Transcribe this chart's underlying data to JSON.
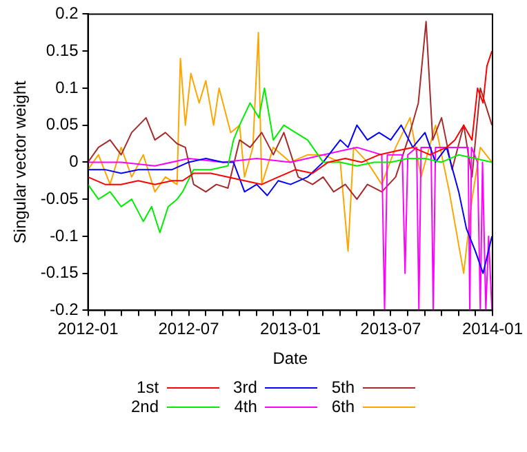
{
  "chart_data": {
    "type": "line",
    "xlabel": "Date",
    "ylabel": "Singular vector weight",
    "legend": "bottom",
    "xlim": [
      "2012-01-01",
      "2014-01-01"
    ],
    "ylim": [
      -0.2,
      0.2
    ],
    "yticks": [
      -0.2,
      -0.15,
      -0.1,
      -0.05,
      0,
      0.05,
      0.1,
      0.15,
      0.2
    ],
    "xticks": [
      "2012-01",
      {
        "value": "2012-02",
        "label": null
      },
      {
        "value": "2012-03",
        "label": null
      },
      {
        "value": "2012-04",
        "label": null
      },
      {
        "value": "2012-05",
        "label": null
      },
      {
        "value": "2012-06",
        "label": null
      },
      "2012-07",
      {
        "value": "2012-08",
        "label": null
      },
      {
        "value": "2012-09",
        "label": null
      },
      {
        "value": "2012-10",
        "label": null
      },
      {
        "value": "2012-11",
        "label": null
      },
      {
        "value": "2012-12",
        "label": null
      },
      "2013-01",
      {
        "value": "2013-02",
        "label": null
      },
      {
        "value": "2013-03",
        "label": null
      },
      {
        "value": "2013-04",
        "label": null
      },
      {
        "value": "2013-05",
        "label": null
      },
      {
        "value": "2013-06",
        "label": null
      },
      "2013-07",
      {
        "value": "2013-08",
        "label": null
      },
      {
        "value": "2013-09",
        "label": null
      },
      {
        "value": "2013-10",
        "label": null
      },
      {
        "value": "2013-11",
        "label": null
      },
      {
        "value": "2013-12",
        "label": null
      },
      "2014-01"
    ],
    "series": [
      {
        "name": "1st",
        "color": "#ff0000",
        "x": [
          "2012-01-01",
          "2012-02-01",
          "2012-03-01",
          "2012-04-01",
          "2012-05-01",
          "2012-06-01",
          "2012-06-20",
          "2012-07-10",
          "2012-08-10",
          "2012-09-10",
          "2012-10-10",
          "2012-11-10",
          "2012-12-10",
          "2013-01-10",
          "2013-02-10",
          "2013-03-10",
          "2013-04-10",
          "2013-05-10",
          "2013-06-10",
          "2013-07-10",
          "2013-08-10",
          "2013-09-10",
          "2013-10-10",
          "2013-10-25",
          "2013-11-10",
          "2013-11-25",
          "2013-12-05",
          "2013-12-15",
          "2013-12-22",
          "2013-12-31"
        ],
        "values": [
          -0.02,
          -0.03,
          -0.03,
          -0.025,
          -0.03,
          -0.025,
          -0.025,
          -0.015,
          -0.015,
          -0.02,
          -0.025,
          -0.03,
          -0.02,
          -0.01,
          -0.015,
          0,
          0.005,
          0,
          0.01,
          0.015,
          0.02,
          0.01,
          0.02,
          0.03,
          0.05,
          0.03,
          0.1,
          0.08,
          0.13,
          0.15
        ]
      },
      {
        "name": "2nd",
        "color": "#00ee00",
        "x": [
          "2012-01-01",
          "2012-01-20",
          "2012-02-10",
          "2012-03-01",
          "2012-03-20",
          "2012-04-10",
          "2012-04-25",
          "2012-05-10",
          "2012-05-25",
          "2012-06-10",
          "2012-06-20",
          "2012-07-10",
          "2012-08-10",
          "2012-09-10",
          "2012-09-20",
          "2012-10-01",
          "2012-10-20",
          "2012-11-05",
          "2012-11-15",
          "2012-12-01",
          "2012-12-20",
          "2013-01-10",
          "2013-02-01",
          "2013-03-01",
          "2013-04-01",
          "2013-05-01",
          "2013-06-01",
          "2013-07-01",
          "2013-08-01",
          "2013-09-01",
          "2013-10-01",
          "2013-11-01",
          "2013-12-01",
          "2013-12-31"
        ],
        "values": [
          -0.03,
          -0.05,
          -0.04,
          -0.06,
          -0.05,
          -0.08,
          -0.06,
          -0.095,
          -0.06,
          -0.05,
          -0.04,
          -0.01,
          -0.01,
          -0.005,
          0.03,
          0.05,
          0.08,
          0.06,
          0.1,
          0.03,
          0.05,
          0.04,
          0.03,
          0,
          0,
          -0.005,
          0,
          0,
          0.005,
          0.005,
          0,
          0.01,
          0.005,
          0
        ]
      },
      {
        "name": "3rd",
        "color": "#0000ff",
        "x": [
          "2012-01-01",
          "2012-02-01",
          "2012-03-01",
          "2012-04-01",
          "2012-05-01",
          "2012-06-01",
          "2012-07-01",
          "2012-08-01",
          "2012-09-01",
          "2012-09-20",
          "2012-10-10",
          "2012-11-01",
          "2012-11-20",
          "2012-12-10",
          "2013-01-01",
          "2013-02-01",
          "2013-03-01",
          "2013-04-01",
          "2013-04-15",
          "2013-05-01",
          "2013-05-20",
          "2013-06-10",
          "2013-07-01",
          "2013-07-20",
          "2013-08-10",
          "2013-09-01",
          "2013-09-20",
          "2013-10-10",
          "2013-11-01",
          "2013-11-15",
          "2013-12-01",
          "2013-12-15",
          "2013-12-31"
        ],
        "values": [
          -0.01,
          -0.01,
          -0.015,
          -0.01,
          -0.01,
          -0.01,
          0,
          0.005,
          0.0,
          0,
          -0.04,
          -0.03,
          -0.045,
          -0.025,
          -0.03,
          -0.02,
          0,
          0.03,
          0.02,
          0.05,
          0.03,
          0.04,
          0.03,
          0.05,
          0.02,
          0.04,
          0.0,
          0.02,
          -0.04,
          -0.09,
          -0.12,
          -0.15,
          -0.1
        ]
      },
      {
        "name": "4th",
        "color": "#ff00ff",
        "x": [
          "2012-01-01",
          "2012-03-01",
          "2012-05-01",
          "2012-07-01",
          "2012-09-01",
          "2012-11-01",
          "2013-01-01",
          "2013-03-01",
          "2013-05-01",
          "2013-06-15",
          "2013-06-20",
          "2013-06-25",
          "2013-07-22",
          "2013-07-27",
          "2013-08-01",
          "2013-08-17",
          "2013-08-21",
          "2013-08-25",
          "2013-09-12",
          "2013-09-16",
          "2013-09-20",
          "2013-10-15",
          "2013-11-01",
          "2013-11-18",
          "2013-11-21",
          "2013-11-24",
          "2013-12-05",
          "2013-12-10",
          "2013-12-14",
          "2013-12-20",
          "2013-12-25",
          "2013-12-31"
        ],
        "values": [
          0,
          0,
          -0.005,
          0.005,
          0,
          0.005,
          0,
          0.01,
          0.02,
          0.01,
          -0.2,
          0.01,
          0.01,
          -0.15,
          0.01,
          0.02,
          -0.2,
          0.02,
          0.02,
          -0.2,
          0.02,
          0.02,
          0.02,
          0.02,
          -0.2,
          0.02,
          0.0,
          -0.2,
          0.0,
          -0.2,
          -0.1,
          -0.2
        ]
      },
      {
        "name": "5th",
        "color": "#a52a2a",
        "x": [
          "2012-01-01",
          "2012-01-20",
          "2012-02-10",
          "2012-03-01",
          "2012-03-20",
          "2012-04-15",
          "2012-05-01",
          "2012-05-20",
          "2012-06-10",
          "2012-06-25",
          "2012-07-10",
          "2012-08-01",
          "2012-08-20",
          "2012-09-10",
          "2012-10-01",
          "2012-10-20",
          "2012-11-10",
          "2012-12-01",
          "2012-12-20",
          "2013-01-15",
          "2013-02-10",
          "2013-03-01",
          "2013-03-20",
          "2013-04-10",
          "2013-05-01",
          "2013-05-20",
          "2013-06-15",
          "2013-07-10",
          "2013-08-01",
          "2013-08-20",
          "2013-09-03",
          "2013-09-15",
          "2013-10-01",
          "2013-10-20",
          "2013-11-10",
          "2013-11-25",
          "2013-12-10",
          "2013-12-31"
        ],
        "values": [
          0,
          0.02,
          0.03,
          0.01,
          0.04,
          0.06,
          0.03,
          0.04,
          0.025,
          0.02,
          -0.03,
          -0.04,
          -0.03,
          -0.035,
          0.03,
          0.02,
          0.04,
          0.01,
          0.04,
          -0.02,
          -0.03,
          -0.02,
          -0.04,
          -0.03,
          -0.05,
          -0.03,
          -0.04,
          -0.02,
          0.03,
          0.08,
          0.19,
          0.03,
          0.06,
          -0.01,
          0.05,
          -0.02,
          0.1,
          0.05
        ]
      },
      {
        "name": "6th",
        "color": "#ffa500",
        "x": [
          "2012-01-01",
          "2012-01-20",
          "2012-02-10",
          "2012-03-01",
          "2012-03-20",
          "2012-04-10",
          "2012-05-01",
          "2012-05-20",
          "2012-06-10",
          "2012-06-16",
          "2012-06-25",
          "2012-07-05",
          "2012-07-20",
          "2012-08-01",
          "2012-08-15",
          "2012-08-25",
          "2012-09-15",
          "2012-10-01",
          "2012-10-10",
          "2012-10-25",
          "2012-11-04",
          "2012-11-10",
          "2012-12-01",
          "2013-01-01",
          "2013-02-01",
          "2013-03-01",
          "2013-04-01",
          "2013-04-15",
          "2013-04-25",
          "2013-05-20",
          "2013-06-15",
          "2013-07-10",
          "2013-08-05",
          "2013-08-25",
          "2013-09-20",
          "2013-10-15",
          "2013-11-10",
          "2013-11-25",
          "2013-12-10",
          "2013-12-31"
        ],
        "values": [
          -0.01,
          0.01,
          -0.03,
          0.02,
          -0.02,
          0.01,
          -0.04,
          -0.02,
          -0.03,
          0.14,
          0.05,
          0.12,
          0.08,
          0.11,
          0.05,
          0.1,
          0.04,
          0.05,
          -0.02,
          0.02,
          0.175,
          -0.03,
          0.02,
          0,
          0.01,
          0.01,
          0,
          -0.12,
          0.02,
          0,
          -0.03,
          0.02,
          0.06,
          -0.02,
          0.05,
          -0.04,
          -0.15,
          -0.05,
          0.02,
          0
        ]
      }
    ]
  }
}
